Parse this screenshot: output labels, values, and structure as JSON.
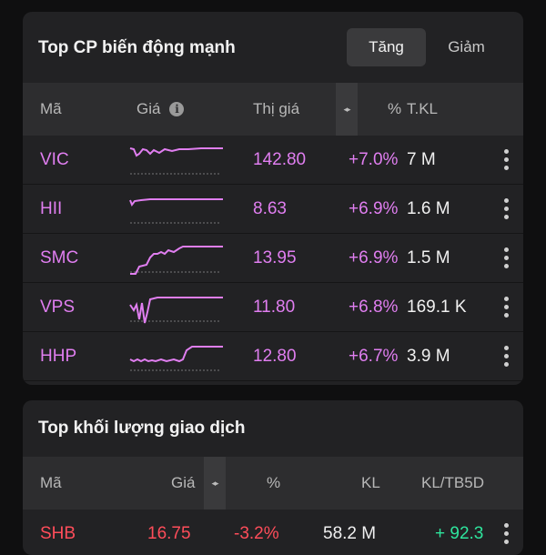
{
  "top_movers": {
    "title": "Top CP biến động mạnh",
    "tabs": {
      "active": "Tăng",
      "inactive": "Giảm"
    },
    "headers": {
      "code": "Mã",
      "price": "Giá",
      "market_price": "Thị giá",
      "percent": "%",
      "volume": "T.KL"
    },
    "rows": [
      {
        "code": "VIC",
        "market_price": "142.80",
        "percent": "+7.0%",
        "volume": "7 M"
      },
      {
        "code": "HII",
        "market_price": "8.63",
        "percent": "+6.9%",
        "volume": "1.6 M"
      },
      {
        "code": "SMC",
        "market_price": "13.95",
        "percent": "+6.9%",
        "volume": "1.5 M"
      },
      {
        "code": "VPS",
        "market_price": "11.80",
        "percent": "+6.8%",
        "volume": "169.1 K"
      },
      {
        "code": "HHP",
        "market_price": "12.80",
        "percent": "+6.7%",
        "volume": "3.9 M"
      }
    ]
  },
  "top_volume": {
    "title": "Top khối lượng giao dịch",
    "headers": {
      "code": "Mã",
      "price": "Giá",
      "percent": "%",
      "volume": "KL",
      "ratio": "KL/TB5D"
    },
    "rows": [
      {
        "code": "SHB",
        "price": "16.75",
        "percent": "-3.2%",
        "volume": "58.2 M",
        "ratio": "+ 92.3"
      }
    ]
  },
  "colors": {
    "up": "#e07ef0",
    "down": "#ff4d5a",
    "green": "#2ee59d"
  },
  "icons": {
    "info": "info-icon",
    "sort": "sort-arrows-icon",
    "more": "more-vertical-icon"
  }
}
